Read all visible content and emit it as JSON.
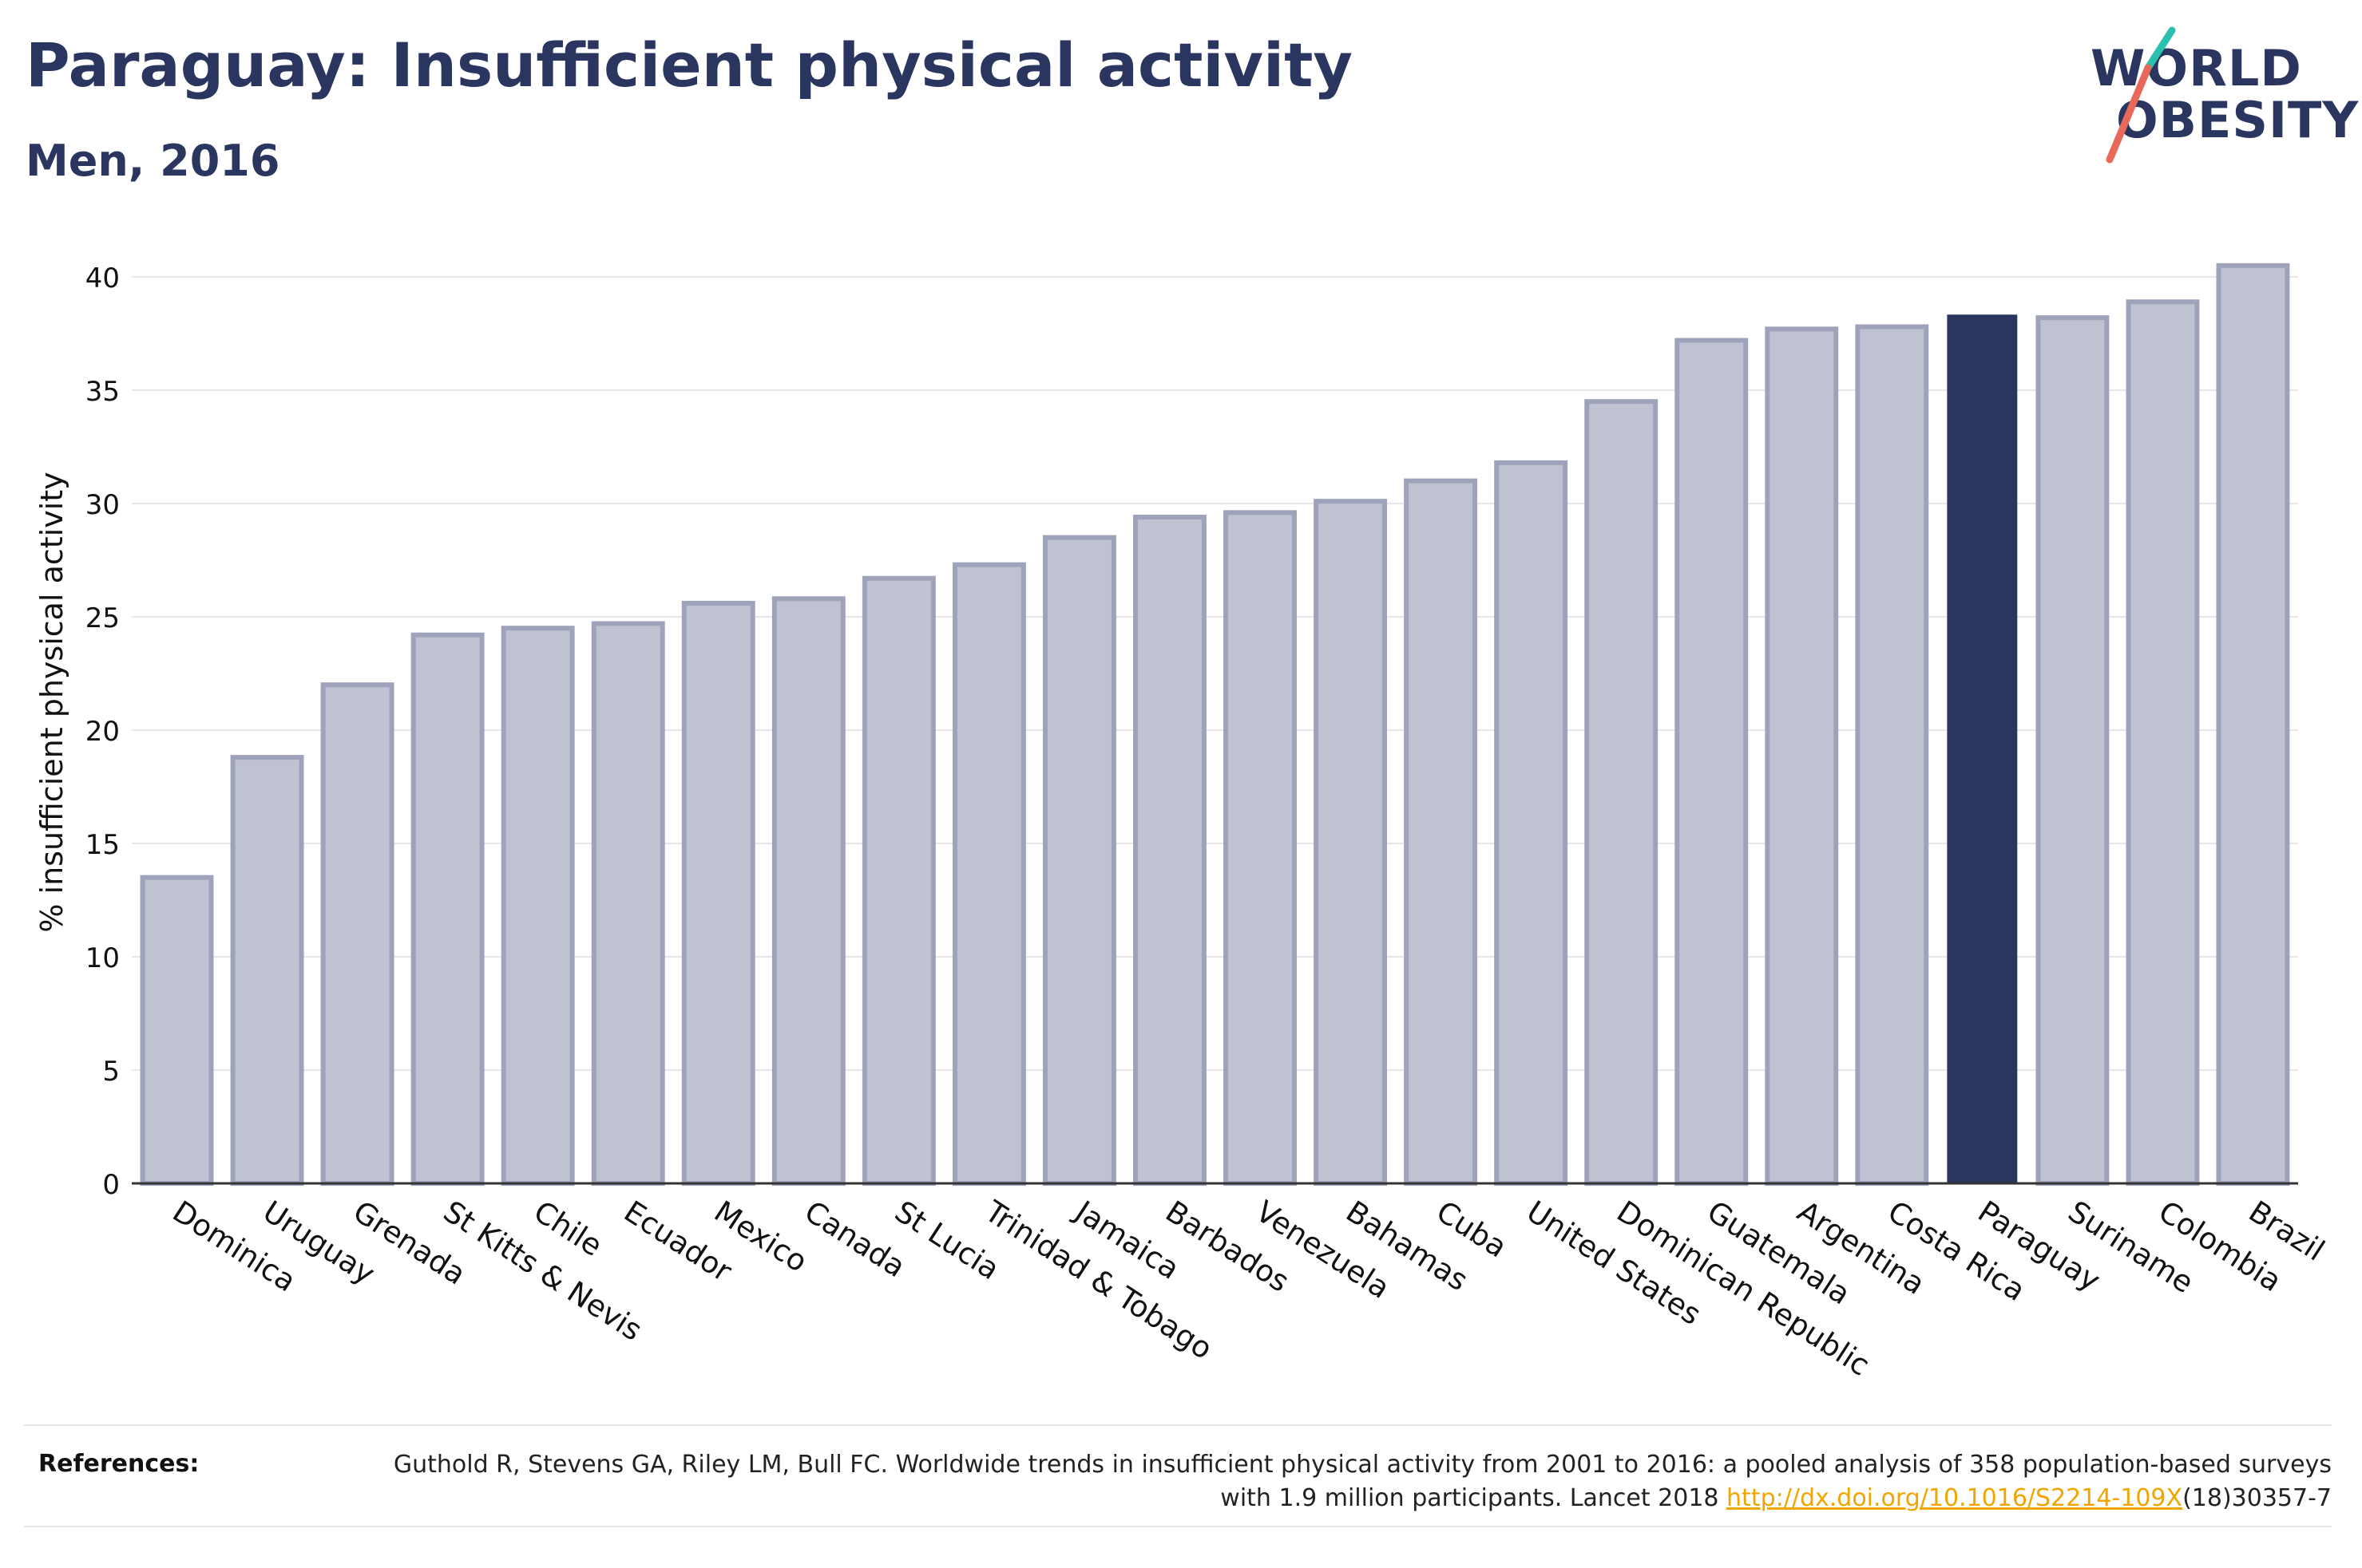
{
  "title": "Paraguay: Insufficient physical activity",
  "subtitle": "Men, 2016",
  "logo": {
    "line1": "WORLD",
    "line2": "OBESITY",
    "color": "#2a3560",
    "accent_teal": "#2bbfae",
    "accent_red": "#e8685a"
  },
  "colors": {
    "bar": "#bfc2d0",
    "bar_border": "#9ea3bb",
    "highlight": "#2a3560",
    "grid": "#e6e6e6",
    "axis": "#333333"
  },
  "chart_data": {
    "type": "bar",
    "title": "Paraguay: Insufficient physical activity",
    "subtitle": "Men, 2016",
    "xlabel": "",
    "ylabel": "% insufficient physical activity",
    "ylim": [
      0,
      40.5
    ],
    "yticks": [
      0,
      5,
      10,
      15,
      20,
      25,
      30,
      35,
      40
    ],
    "highlight": "Paraguay",
    "categories": [
      "Dominica",
      "Uruguay",
      "Grenada",
      "St Kitts & Nevis",
      "Chile",
      "Ecuador",
      "Mexico",
      "Canada",
      "St Lucia",
      "Trinidad & Tobago",
      "Jamaica",
      "Barbados",
      "Venezuela",
      "Bahamas",
      "Cuba",
      "United States",
      "Dominican Republic",
      "Guatemala",
      "Argentina",
      "Costa Rica",
      "Paraguay",
      "Suriname",
      "Colombia",
      "Brazil"
    ],
    "values": [
      13.5,
      18.8,
      22.0,
      24.2,
      24.5,
      24.7,
      25.6,
      25.8,
      26.7,
      27.3,
      28.5,
      29.4,
      29.6,
      30.1,
      31.0,
      31.8,
      34.5,
      37.2,
      37.7,
      37.8,
      38.3,
      38.2,
      38.9,
      40.5
    ],
    "grid": true
  },
  "references": {
    "label": "References:",
    "text_before": "Guthold R, Stevens GA, Riley LM, Bull FC. Worldwide trends in insufficient physical activity from 2001 to 2016: a pooled analysis of 358 population-based surveys with 1.9 million participants. Lancet 2018 ",
    "link": "http://dx.doi.org/10.1016/S2214-109X",
    "text_after": "(18)30357-7"
  }
}
